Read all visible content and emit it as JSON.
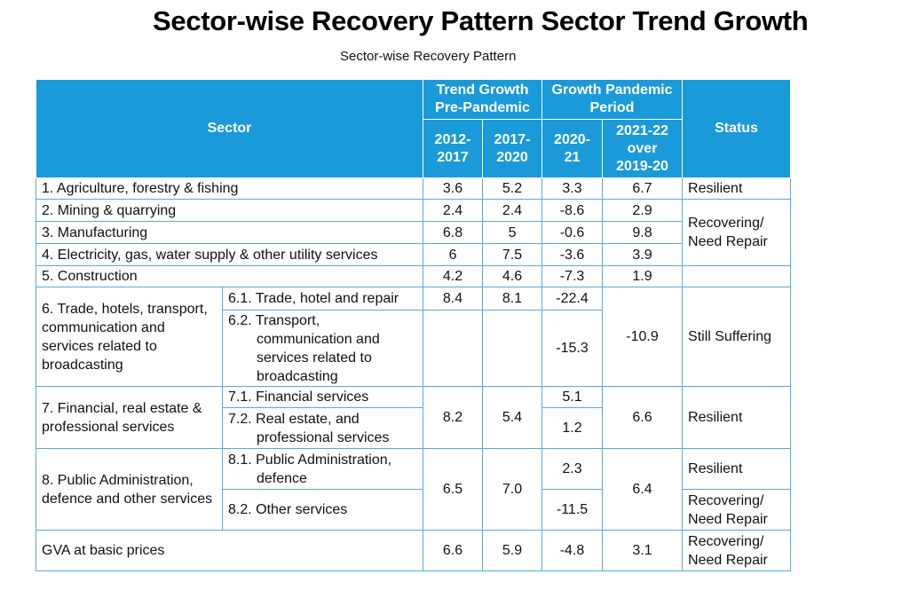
{
  "title": "Sector-wise Recovery Pattern Sector Trend Growth",
  "subtitle": "Sector-wise Recovery Pattern",
  "header": {
    "sector": "Sector",
    "trend_group": "Trend Growth Pre-Pandemic",
    "growth_group": "Growth Pandemic Period",
    "status": "Status",
    "c1": "2012-2017",
    "c2": "2017-2020",
    "c3": "2020-21",
    "c4": "2021-22 over 2019-20"
  },
  "rows": {
    "agri": {
      "sector": "1. Agriculture, forestry & fishing",
      "v1": "3.6",
      "v2": "5.2",
      "v3": "3.3",
      "v4": "6.7",
      "status": "Resilient"
    },
    "mining": {
      "sector": "2. Mining & quarrying",
      "v1": "2.4",
      "v2": "2.4",
      "v3": "-8.6",
      "v4": "2.9"
    },
    "mfg": {
      "sector": "3. Manufacturing",
      "v1": "6.8",
      "v2": "5",
      "v3": "-0.6",
      "v4": "9.8"
    },
    "elec": {
      "sector": "4. Electricity, gas, water supply & other utility services",
      "v1": "6",
      "v2": "7.5",
      "v3": "-3.6",
      "v4": "3.9"
    },
    "constr": {
      "sector": "5. Construction",
      "v1": "4.2",
      "v2": "4.6",
      "v3": "-7.3",
      "v4": "1.9"
    },
    "recovering_status": "Recovering/ Need Repair",
    "trade": {
      "sector": "6. Trade, hotels, transport, communication and services related to broadcasting",
      "sub1": "6.1. Trade, hotel and repair",
      "sub1_v1": "8.4",
      "sub1_v2": "8.1",
      "sub1_v3": "-22.4",
      "sub2": "6.2. Transport, communication and services related to broadcasting",
      "sub2_v3": "-15.3",
      "v4": "-10.9",
      "status": "Still Suffering"
    },
    "fin": {
      "sector": "7. Financial, real estate & professional services",
      "sub1": "7.1. Financial services",
      "sub1_v3": "5.1",
      "sub2": "7.2. Real estate, and professional services",
      "sub2_v3": "1.2",
      "v1": "8.2",
      "v2": "5.4",
      "v4": "6.6",
      "status": "Resilient"
    },
    "pub": {
      "sector": "8. Public Administration, defence and other services",
      "sub1": "8.1. Public Administration, defence",
      "sub1_v3": "2.3",
      "sub1_status": "Resilient",
      "sub2": "8.2. Other services",
      "sub2_v3": "-11.5",
      "sub2_status": "Recovering/ Need Repair",
      "v1": "6.5",
      "v2": "7.0",
      "v4": "6.4"
    },
    "gva": {
      "sector": "GVA at basic prices",
      "v1": "6.6",
      "v2": "5.9",
      "v3": "-4.8",
      "v4": "3.1",
      "status": "Recovering/ Need Repair"
    }
  }
}
